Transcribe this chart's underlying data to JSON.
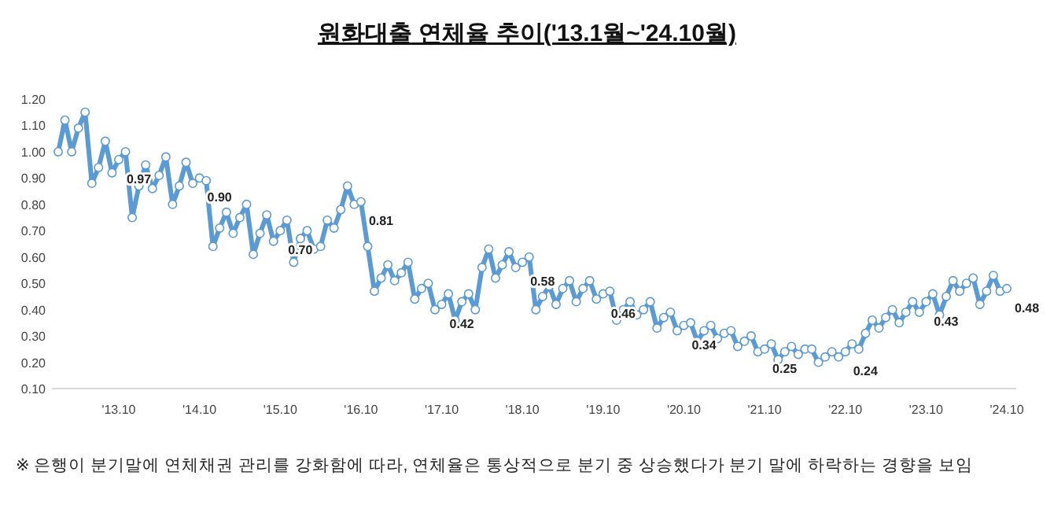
{
  "chart_data": {
    "type": "line",
    "title": "원화대출 연체율 추이('13.1월~'24.10월)",
    "annotations": [
      "※ 은행이 분기말에 연체채권 관리를 강화함에 따라, 연체율은 통상적으로 분기 중 상승했다가 분기 말에 하락하는 경향을 보임"
    ],
    "categories": [
      null,
      null,
      null,
      null,
      null,
      null,
      null,
      null,
      null,
      "'13.10",
      null,
      null,
      null,
      null,
      null,
      null,
      null,
      null,
      null,
      null,
      null,
      "'14.10",
      null,
      null,
      null,
      null,
      null,
      null,
      null,
      null,
      null,
      null,
      null,
      "'15.10",
      null,
      null,
      null,
      null,
      null,
      null,
      null,
      null,
      null,
      null,
      null,
      "'16.10",
      null,
      null,
      null,
      null,
      null,
      null,
      null,
      null,
      null,
      null,
      null,
      "'17.10",
      null,
      null,
      null,
      null,
      null,
      null,
      null,
      null,
      null,
      null,
      null,
      "'18.10",
      null,
      null,
      null,
      null,
      null,
      null,
      null,
      null,
      null,
      null,
      null,
      "'19.10",
      null,
      null,
      null,
      null,
      null,
      null,
      null,
      null,
      null,
      null,
      null,
      "'20.10",
      null,
      null,
      null,
      null,
      null,
      null,
      null,
      null,
      null,
      null,
      null,
      "'21.10",
      null,
      null,
      null,
      null,
      null,
      null,
      null,
      null,
      null,
      null,
      null,
      "'22.10",
      null,
      null,
      null,
      null,
      null,
      null,
      null,
      null,
      null,
      null,
      null,
      "'23.10",
      null,
      null,
      null,
      null,
      null,
      null,
      null,
      null,
      null,
      null,
      null,
      "'24.10"
    ],
    "series": [
      {
        "color": "#5b9bd5",
        "values": [
          1.0,
          1.12,
          1.0,
          1.09,
          1.15,
          0.88,
          0.94,
          1.04,
          0.92,
          0.97,
          1.0,
          0.75,
          0.87,
          0.95,
          0.86,
          0.91,
          0.98,
          0.8,
          0.87,
          0.96,
          0.88,
          0.9,
          0.89,
          0.64,
          0.71,
          0.77,
          0.69,
          0.75,
          0.8,
          0.61,
          0.69,
          0.76,
          0.66,
          0.7,
          0.74,
          0.58,
          0.67,
          0.7,
          0.63,
          0.64,
          0.74,
          0.71,
          0.78,
          0.87,
          0.8,
          0.81,
          0.64,
          0.47,
          0.52,
          0.57,
          0.51,
          0.54,
          0.58,
          0.44,
          0.48,
          0.5,
          0.4,
          0.42,
          0.46,
          0.36,
          0.43,
          0.46,
          0.4,
          0.56,
          0.63,
          0.52,
          0.57,
          0.62,
          0.56,
          0.58,
          0.6,
          0.4,
          0.45,
          0.49,
          0.42,
          0.48,
          0.51,
          0.43,
          0.48,
          0.51,
          0.44,
          0.46,
          0.47,
          0.36,
          0.4,
          0.43,
          0.38,
          0.4,
          0.43,
          0.33,
          0.37,
          0.39,
          0.32,
          0.34,
          0.35,
          0.28,
          0.32,
          0.34,
          0.29,
          0.31,
          0.32,
          0.26,
          0.28,
          0.3,
          0.24,
          0.25,
          0.27,
          0.21,
          0.24,
          0.26,
          0.23,
          0.25,
          0.25,
          0.2,
          0.22,
          0.24,
          0.22,
          0.24,
          0.27,
          0.25,
          0.31,
          0.36,
          0.33,
          0.37,
          0.4,
          0.35,
          0.39,
          0.43,
          0.39,
          0.43,
          0.46,
          0.38,
          0.45,
          0.51,
          0.47,
          0.5,
          0.52,
          0.42,
          0.47,
          0.53,
          0.47,
          0.48
        ],
        "value_labels": [
          null,
          null,
          null,
          null,
          null,
          null,
          null,
          null,
          null,
          "0.97",
          null,
          null,
          null,
          null,
          null,
          null,
          null,
          null,
          null,
          null,
          null,
          "0.90",
          null,
          null,
          null,
          null,
          null,
          null,
          null,
          null,
          null,
          null,
          null,
          "0.70",
          null,
          null,
          null,
          null,
          null,
          null,
          null,
          null,
          null,
          null,
          null,
          "0.81",
          null,
          null,
          null,
          null,
          null,
          null,
          null,
          null,
          null,
          null,
          null,
          "0.42",
          null,
          null,
          null,
          null,
          null,
          null,
          null,
          null,
          null,
          null,
          null,
          "0.58",
          null,
          null,
          null,
          null,
          null,
          null,
          null,
          null,
          null,
          null,
          null,
          "0.46",
          null,
          null,
          null,
          null,
          null,
          null,
          null,
          null,
          null,
          null,
          null,
          "0.34",
          null,
          null,
          null,
          null,
          null,
          null,
          null,
          null,
          null,
          null,
          null,
          "0.25",
          null,
          null,
          null,
          null,
          null,
          null,
          null,
          null,
          null,
          null,
          null,
          "0.24",
          null,
          null,
          null,
          null,
          null,
          null,
          null,
          null,
          null,
          null,
          null,
          "0.43",
          null,
          null,
          null,
          null,
          null,
          null,
          null,
          null,
          null,
          null,
          null,
          "0.48"
        ]
      }
    ],
    "ylim": [
      0.1,
      1.2
    ],
    "yticks": [
      {
        "value": 0.1,
        "label": "0.10"
      },
      {
        "value": 0.2,
        "label": "0.20"
      },
      {
        "value": 0.3,
        "label": "0.30"
      },
      {
        "value": 0.4,
        "label": "0.40"
      },
      {
        "value": 0.5,
        "label": "0.50"
      },
      {
        "value": 0.6,
        "label": "0.60"
      },
      {
        "value": 0.7,
        "label": "0.70"
      },
      {
        "value": 0.8,
        "label": "0.80"
      },
      {
        "value": 0.9,
        "label": "0.90"
      },
      {
        "value": 1.0,
        "label": "1.00"
      },
      {
        "value": 1.1,
        "label": "1.10"
      },
      {
        "value": 1.2,
        "label": "1.20"
      }
    ],
    "grid": false,
    "marker": "circle",
    "line_style": "solid"
  }
}
